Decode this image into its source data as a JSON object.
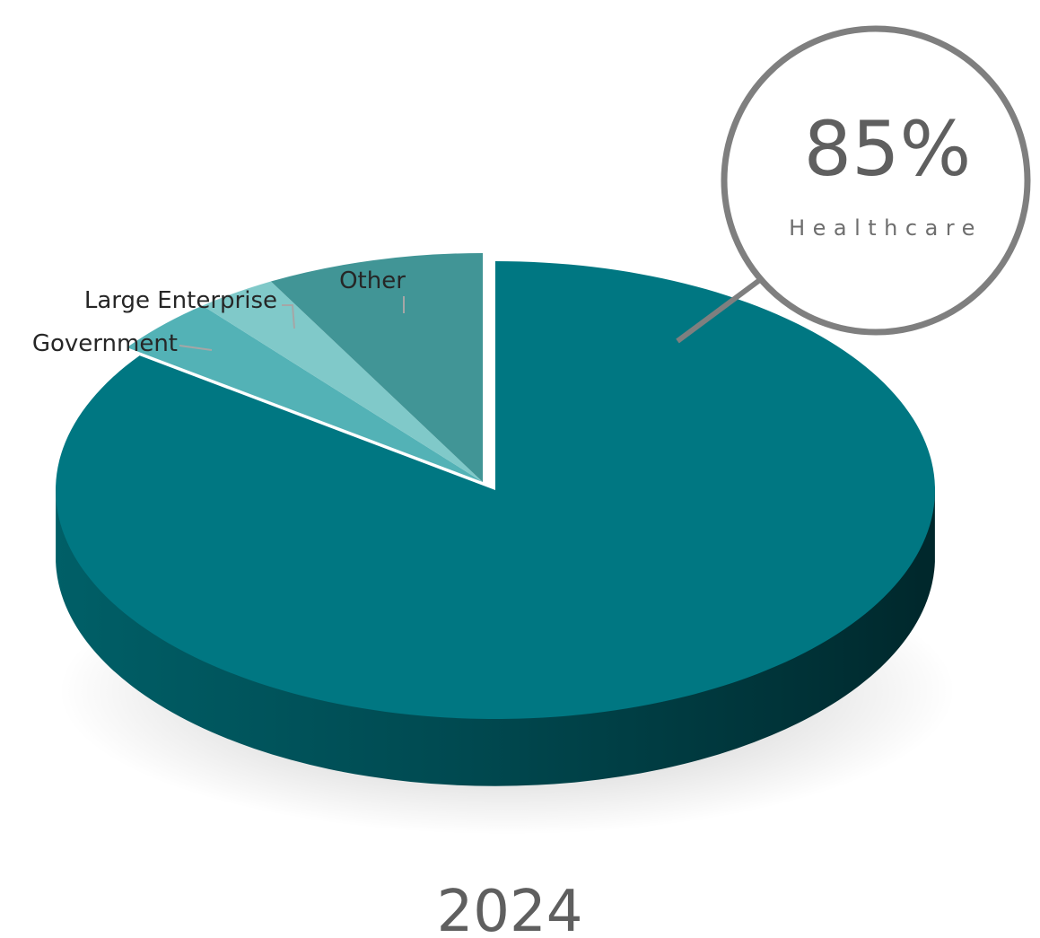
{
  "chart_data": {
    "type": "pie",
    "title": "",
    "year_label": "2024",
    "slices": [
      {
        "name": "Healthcare",
        "value": 85,
        "color": "#007782",
        "exploded": true
      },
      {
        "name": "Government",
        "value": 4,
        "color": "#53b2b6"
      },
      {
        "name": "Large Enterprise",
        "value": 3,
        "color": "#80c9c9"
      },
      {
        "name": "Other",
        "value": 8,
        "color": "#419596"
      }
    ],
    "callout": {
      "value": "85%",
      "label": "Healthcare"
    }
  }
}
